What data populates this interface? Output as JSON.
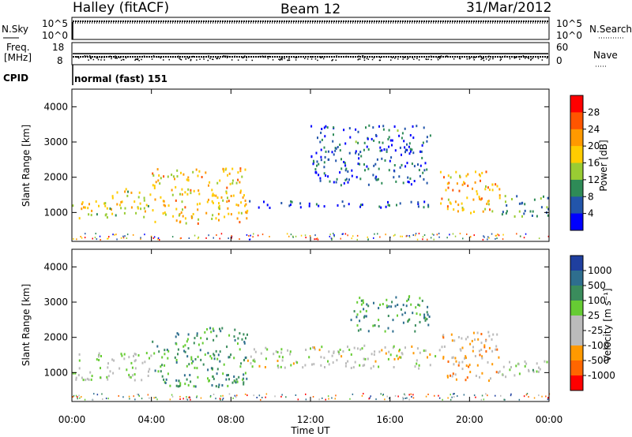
{
  "header": {
    "station": "Halley (fitACF)",
    "beam": "Beam 12",
    "date": "31/Mar/2012"
  },
  "top_panels": {
    "nsky_label": "N.Sky",
    "nsearch_label": "N.Search",
    "nsky_ticks": [
      "10^5",
      "10^0"
    ],
    "nsearch_ticks": [
      "10^5",
      "10^0"
    ],
    "freq_label_1": "Freq.",
    "freq_label_2": "[MHz]",
    "freq_ticks": [
      "18",
      "8"
    ],
    "nave_label": "Nave",
    "nave_ticks": [
      "60",
      "0"
    ],
    "cpid_label": "CPID",
    "cpid_text": "normal (fast) 151"
  },
  "chart_data": [
    {
      "type": "heatmap",
      "name": "power",
      "ylabel": "Slant Range [km]",
      "xlabel": "Time UT",
      "x_range_hours": [
        0,
        24
      ],
      "ylim": [
        180,
        4500
      ],
      "y_ticks": [
        1000,
        2000,
        3000,
        4000
      ],
      "x_ticks": [
        "00:00",
        "04:00",
        "08:00",
        "12:00",
        "16:00",
        "20:00",
        "00:00"
      ],
      "colorbar_label": "Power [dB]",
      "colorbar_ticks": [
        "28",
        "24",
        "20",
        "16",
        "12",
        "8",
        "4"
      ],
      "colorbar_colors": [
        "#ff0000",
        "#ff5500",
        "#ff9900",
        "#ffcc00",
        "#99cc33",
        "#2e8b57",
        "#2255aa",
        "#0000ff"
      ],
      "echo_regions": [
        {
          "t0": 0.0,
          "t1": 2.0,
          "r0": 800,
          "r1": 1400,
          "level": 0.55
        },
        {
          "t0": 2.0,
          "t1": 4.0,
          "r0": 900,
          "r1": 1700,
          "level": 0.5
        },
        {
          "t0": 4.0,
          "t1": 8.8,
          "r0": 700,
          "r1": 2300,
          "level": 0.6
        },
        {
          "t0": 8.8,
          "t1": 18.5,
          "r0": 1150,
          "r1": 1350,
          "level": 0.1
        },
        {
          "t0": 12.0,
          "t1": 18.0,
          "r0": 1800,
          "r1": 3500,
          "level": 0.15
        },
        {
          "t0": 18.5,
          "t1": 21.5,
          "r0": 1000,
          "r1": 2200,
          "level": 0.65
        },
        {
          "t0": 21.5,
          "t1": 24.0,
          "r0": 900,
          "r1": 1500,
          "level": 0.3
        }
      ]
    },
    {
      "type": "heatmap",
      "name": "velocity",
      "ylabel": "Slant Range [km]",
      "xlabel": "Time UT",
      "x_range_hours": [
        0,
        24
      ],
      "ylim": [
        180,
        4500
      ],
      "y_ticks": [
        1000,
        2000,
        3000,
        4000
      ],
      "x_ticks": [
        "00:00",
        "04:00",
        "08:00",
        "12:00",
        "16:00",
        "20:00",
        "00:00"
      ],
      "colorbar_label": "Velocity [m s⁻¹]",
      "colorbar_ticks": [
        "1000",
        "500",
        "100",
        "25",
        "-25",
        "-100",
        "-500",
        "-1000"
      ],
      "colorbar_colors": [
        "#1f3f9f",
        "#2e6e8e",
        "#3a8c5c",
        "#66cc33",
        "#bbbbbb",
        "#bbbbbb",
        "#ff9900",
        "#ff6600",
        "#ff0000"
      ],
      "echo_regions": [
        {
          "t0": 0.0,
          "t1": 4.0,
          "r0": 800,
          "r1": 1600,
          "level": 0.5
        },
        {
          "t0": 4.0,
          "t1": 8.8,
          "r0": 600,
          "r1": 2300,
          "level": 0.75
        },
        {
          "t0": 8.8,
          "t1": 18.5,
          "r0": 1150,
          "r1": 1800,
          "level": 0.45
        },
        {
          "t0": 14.0,
          "t1": 18.0,
          "r0": 2200,
          "r1": 3200,
          "level": 0.75
        },
        {
          "t0": 18.5,
          "t1": 21.5,
          "r0": 800,
          "r1": 2200,
          "level": 0.3
        },
        {
          "t0": 21.5,
          "t1": 24.0,
          "r0": 900,
          "r1": 1400,
          "level": 0.55
        }
      ]
    }
  ]
}
